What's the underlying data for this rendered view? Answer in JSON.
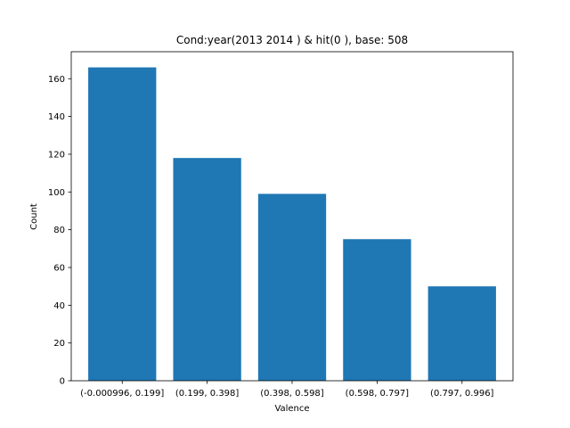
{
  "chart_data": {
    "type": "bar",
    "title": "Cond:year(2013 2014 ) & hit(0 ), base: 508",
    "xlabel": "Valence",
    "ylabel": "Count",
    "categories": [
      "(-0.000996, 0.199]",
      "(0.199, 0.398]",
      "(0.398, 0.598]",
      "(0.598, 0.797]",
      "(0.797, 0.996]"
    ],
    "values": [
      166,
      118,
      99,
      75,
      50
    ],
    "ylim": [
      0,
      174.3
    ],
    "yticks": [
      0,
      20,
      40,
      60,
      80,
      100,
      120,
      140,
      160
    ],
    "grid": false,
    "legend": "none",
    "bar_color": "#1f77b4"
  }
}
